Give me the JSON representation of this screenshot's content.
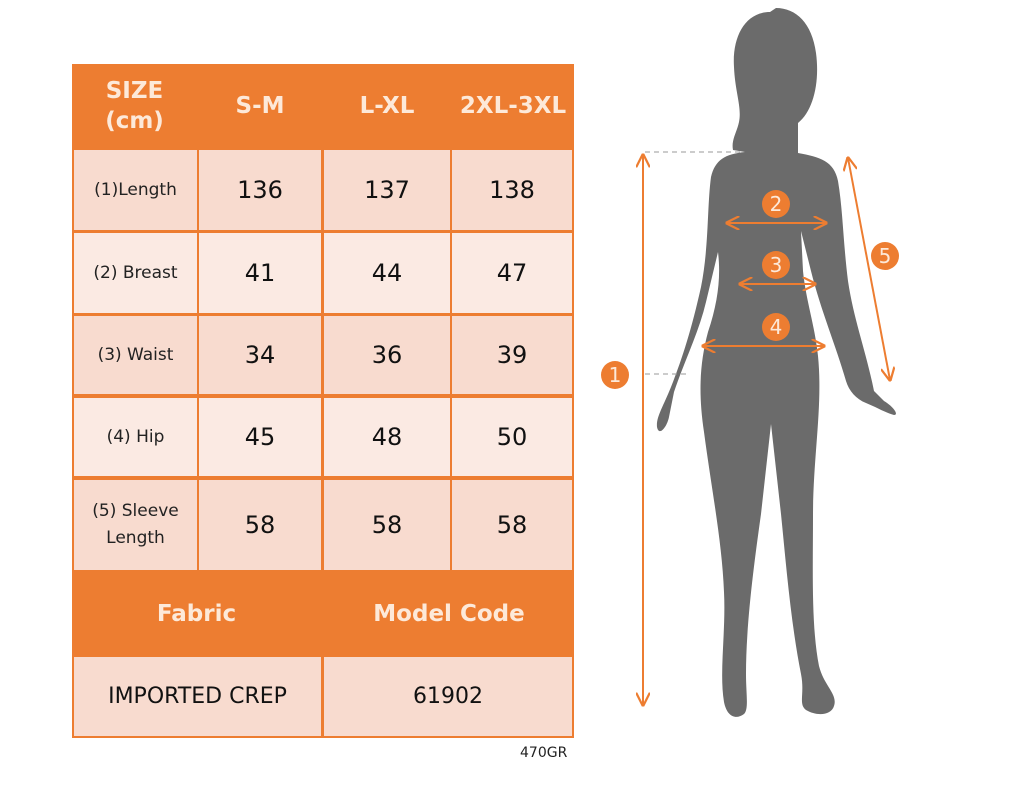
{
  "table": {
    "headers": [
      "SIZE\n(cm)",
      "S-M",
      "L-XL",
      "2XL-3XL"
    ],
    "header_line1": "SIZE",
    "header_line2": "(cm)",
    "rows": [
      {
        "label": "(1)Length",
        "values": [
          "136",
          "137",
          "138"
        ]
      },
      {
        "label": "(2) Breast",
        "values": [
          "41",
          "44",
          "47"
        ]
      },
      {
        "label": "(3) Waist",
        "values": [
          "34",
          "36",
          "39"
        ]
      },
      {
        "label": "(4) Hip",
        "values": [
          "45",
          "48",
          "50"
        ]
      },
      {
        "label": "(5) Sleeve Length",
        "label_line1": "(5) Sleeve",
        "label_line2": "Length",
        "values": [
          "58",
          "58",
          "58"
        ]
      }
    ],
    "fabric_header": "Fabric",
    "model_code_header": "Model Code",
    "fabric_value": "IMPORTED CREP",
    "model_code_value": "61902"
  },
  "footer_code": "470GR",
  "markers": [
    "1",
    "2",
    "3",
    "4",
    "5"
  ],
  "colors": {
    "accent": "#ed7d31",
    "cell_dark": "#f8dbcf",
    "cell_light": "#fbeae3",
    "silhouette": "#6b6b6b"
  }
}
